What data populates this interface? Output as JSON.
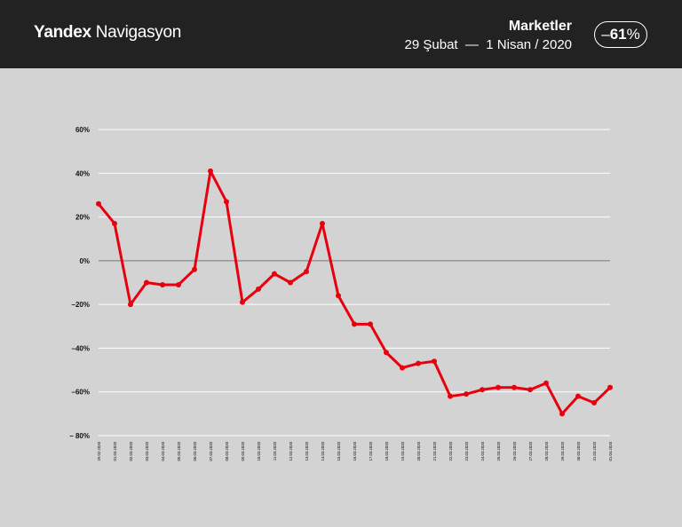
{
  "header": {
    "brand_strong": "Yandex",
    "brand_light": "Navigasyon",
    "title": "Marketler",
    "subtitle": "29 Şubat  —  1 Nisan / 2020",
    "change_sign": "–",
    "change_value": "61",
    "change_unit": "%"
  },
  "colors": {
    "header_bg": "#222222",
    "chart_bg": "#d3d3d3",
    "line": "#e8000e",
    "gridline": "#ffffff",
    "zero_line": "#8a8a8a"
  },
  "chart_data": {
    "type": "line",
    "title": "",
    "xlabel": "",
    "ylabel": "",
    "ylim": [
      -80,
      60
    ],
    "yticks": [
      60,
      40,
      20,
      0,
      -20,
      -40,
      -60,
      -80
    ],
    "ytick_labels": [
      "60%",
      "40%",
      "20%",
      "0%",
      "–20%",
      "–40%",
      "–60%",
      "– 80%"
    ],
    "grid": true,
    "legend": "none",
    "x": [
      "29.02.2020",
      "01.03.2020",
      "02.03.2020",
      "03.03.2020",
      "04.03.2020",
      "05.03.2020",
      "06.03.2020",
      "07.03.2020",
      "08.03.2020",
      "09.03.2020",
      "10.03.2020",
      "11.03.2020",
      "12.03.2020",
      "13.03.2020",
      "14.03.2020",
      "15.03.2020",
      "16.03.2020",
      "17.03.2020",
      "18.03.2020",
      "19.03.2020",
      "20.03.2020",
      "21.03.2020",
      "22.03.2020",
      "23.03.2020",
      "24.03.2020",
      "25.03.2020",
      "26.03.2020",
      "27.03.2020",
      "28.03.2020",
      "29.03.2020",
      "30.03.2020",
      "31.03.2020",
      "01.04.2020"
    ],
    "series": [
      {
        "values": [
          26,
          17,
          -20,
          -10,
          -11,
          -11,
          -4,
          41,
          27,
          -19,
          -13,
          -6,
          -10,
          -5,
          17,
          -16,
          -29,
          -29,
          -42,
          -49,
          -47,
          -46,
          -62,
          -61,
          -59,
          -58,
          -58,
          -59,
          -56,
          -70,
          -62,
          -65,
          -58
        ]
      }
    ]
  }
}
